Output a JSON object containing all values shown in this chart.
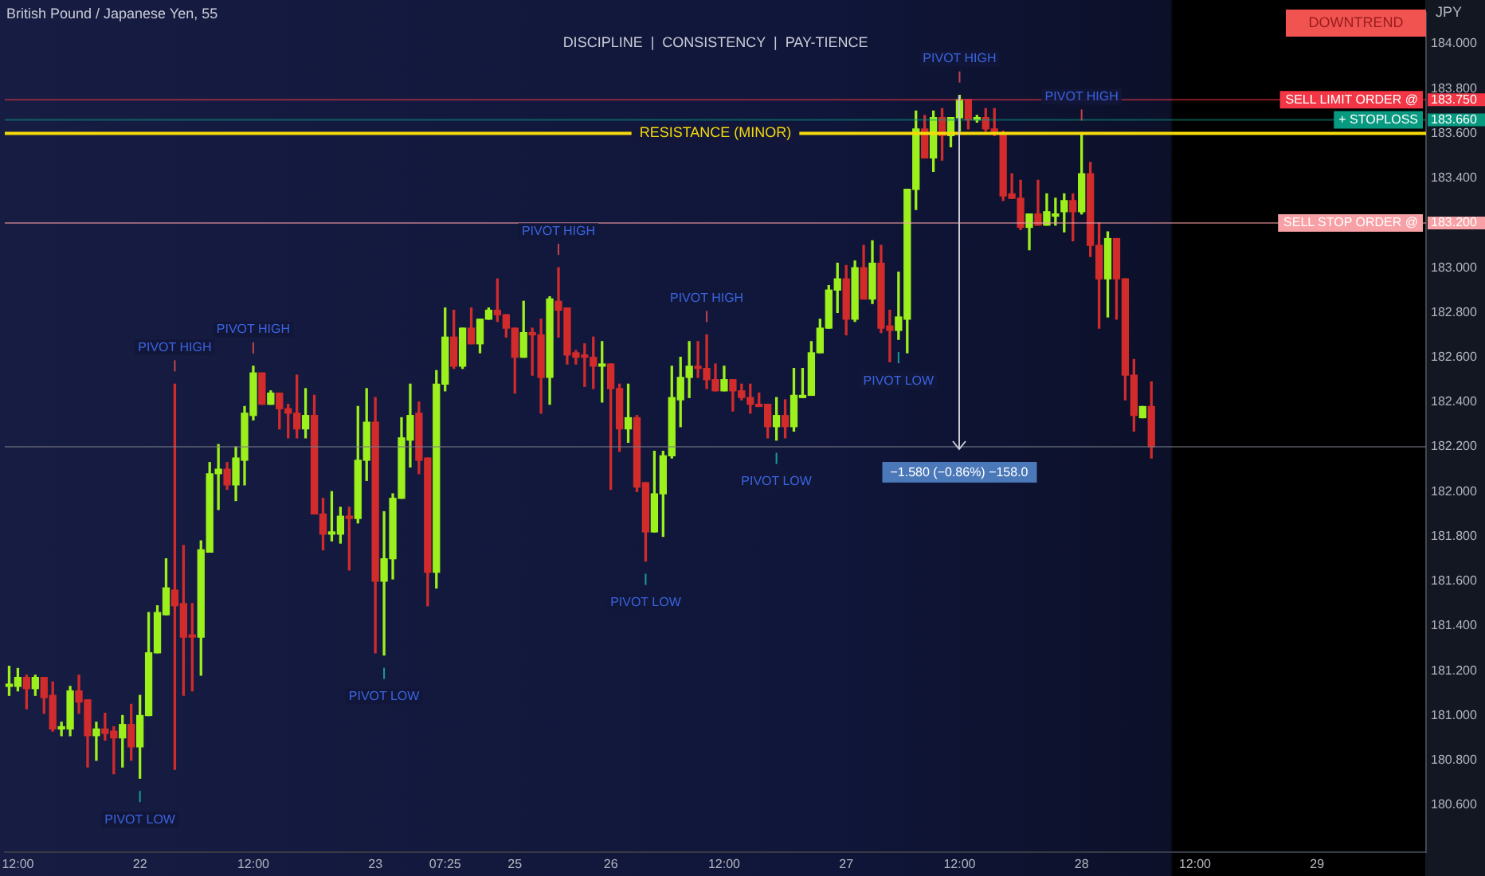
{
  "chart_data": {
    "type": "candlestick",
    "title": "British Pound / Japanese Yen, 55",
    "subtitle": "DISCIPLINE  |  CONSISTENCY  |  PAY-TIENCE",
    "ylabel": "JPY",
    "categories": [
      null,
      "12:00",
      null,
      null,
      null,
      null,
      null,
      null,
      null,
      null,
      null,
      null,
      null,
      null,
      null,
      "22",
      null,
      null,
      null,
      null,
      null,
      null,
      null,
      null,
      null,
      null,
      null,
      null,
      "12:00",
      null,
      null,
      null,
      null,
      null,
      null,
      null,
      null,
      null,
      null,
      null,
      null,
      null,
      "23",
      null,
      null,
      null,
      null,
      null,
      null,
      null,
      "07:25",
      null,
      null,
      null,
      null,
      null,
      null,
      null,
      "25",
      null,
      null,
      null,
      null,
      null,
      null,
      null,
      null,
      null,
      null,
      "26",
      null,
      null,
      null,
      null,
      null,
      null,
      null,
      null,
      null,
      null,
      null,
      null,
      "12:00",
      null,
      null,
      null,
      null,
      null,
      null,
      null,
      null,
      null,
      null,
      null,
      null,
      null,
      "27",
      null,
      null,
      null,
      null,
      null,
      null,
      null,
      null,
      null,
      null,
      null,
      null,
      "12:00",
      null,
      null,
      null,
      null,
      null,
      null,
      null,
      null,
      null,
      null,
      null,
      null,
      null,
      "28",
      null,
      null,
      null,
      null,
      null,
      null,
      null,
      null,
      null,
      null,
      null,
      null,
      "12:00",
      null,
      null,
      null,
      null,
      null,
      null,
      null,
      null,
      null,
      null,
      null,
      null,
      null,
      "29",
      null,
      null,
      null,
      null,
      null,
      null,
      null,
      null,
      null,
      null,
      null,
      null
    ],
    "ohlc": [
      [
        181.13,
        181.22,
        181.09,
        181.14
      ],
      [
        181.13,
        181.21,
        181.11,
        181.17
      ],
      [
        181.17,
        181.18,
        181.03,
        181.12
      ],
      [
        181.12,
        181.18,
        181.09,
        181.17
      ],
      [
        181.17,
        181.17,
        181.01,
        181.08
      ],
      [
        181.09,
        181.15,
        180.93,
        180.94
      ],
      [
        180.94,
        180.97,
        180.91,
        180.95
      ],
      [
        180.94,
        181.13,
        180.91,
        181.11
      ],
      [
        181.11,
        181.18,
        181.01,
        181.06
      ],
      [
        181.07,
        181.07,
        180.77,
        180.91
      ],
      [
        180.91,
        180.97,
        180.8,
        180.94
      ],
      [
        180.94,
        181.01,
        180.89,
        180.92
      ],
      [
        180.93,
        180.95,
        180.74,
        180.9
      ],
      [
        180.9,
        181.0,
        180.77,
        180.96
      ],
      [
        180.96,
        181.05,
        180.8,
        180.86
      ],
      [
        180.86,
        181.09,
        180.72,
        181.0
      ],
      [
        181.0,
        181.46,
        181.0,
        181.28
      ],
      [
        181.28,
        181.49,
        181.28,
        181.46
      ],
      [
        181.45,
        181.7,
        181.45,
        181.57
      ],
      [
        181.56,
        182.48,
        180.76,
        181.49
      ],
      [
        181.5,
        181.76,
        181.09,
        181.35
      ],
      [
        181.36,
        181.5,
        181.11,
        181.35
      ],
      [
        181.35,
        181.78,
        181.18,
        181.74
      ],
      [
        181.73,
        182.13,
        181.73,
        182.08
      ],
      [
        182.08,
        182.21,
        181.92,
        182.1
      ],
      [
        182.1,
        182.13,
        182.01,
        182.03
      ],
      [
        182.03,
        182.2,
        181.96,
        182.15
      ],
      [
        182.14,
        182.38,
        182.03,
        182.35
      ],
      [
        182.34,
        182.56,
        182.32,
        182.53
      ],
      [
        182.53,
        182.53,
        182.39,
        182.39
      ],
      [
        182.39,
        182.45,
        182.39,
        182.44
      ],
      [
        182.44,
        182.44,
        182.28,
        182.37
      ],
      [
        182.37,
        182.39,
        182.24,
        182.35
      ],
      [
        182.35,
        182.52,
        182.24,
        182.28
      ],
      [
        182.28,
        182.46,
        182.24,
        182.34
      ],
      [
        182.34,
        182.43,
        181.9,
        181.9
      ],
      [
        181.9,
        181.97,
        181.74,
        181.81
      ],
      [
        181.81,
        182.0,
        181.78,
        181.82
      ],
      [
        181.81,
        181.93,
        181.77,
        181.89
      ],
      [
        181.89,
        181.93,
        181.65,
        181.88
      ],
      [
        181.88,
        182.38,
        181.86,
        182.14
      ],
      [
        182.14,
        182.46,
        182.05,
        182.31
      ],
      [
        182.31,
        182.42,
        181.28,
        181.6
      ],
      [
        181.6,
        181.91,
        181.27,
        181.7
      ],
      [
        181.7,
        181.99,
        181.61,
        181.97
      ],
      [
        181.97,
        182.33,
        181.97,
        182.24
      ],
      [
        182.23,
        182.48,
        182.11,
        182.34
      ],
      [
        182.35,
        182.4,
        182.08,
        182.14
      ],
      [
        182.15,
        182.15,
        181.49,
        181.64
      ],
      [
        181.64,
        182.54,
        181.57,
        182.48
      ],
      [
        182.48,
        182.82,
        182.45,
        182.69
      ],
      [
        182.69,
        182.81,
        182.55,
        182.56
      ],
      [
        182.56,
        182.73,
        182.55,
        182.73
      ],
      [
        182.73,
        182.82,
        182.66,
        182.66
      ],
      [
        182.66,
        182.77,
        182.62,
        182.77
      ],
      [
        182.77,
        182.82,
        182.77,
        182.81
      ],
      [
        182.81,
        182.95,
        182.76,
        182.79
      ],
      [
        182.79,
        182.79,
        182.69,
        182.73
      ],
      [
        182.73,
        182.73,
        182.44,
        182.6
      ],
      [
        182.6,
        182.85,
        182.6,
        182.71
      ],
      [
        182.71,
        182.73,
        182.52,
        182.7
      ],
      [
        182.7,
        182.77,
        182.35,
        182.51
      ],
      [
        182.51,
        182.87,
        182.39,
        182.86
      ],
      [
        182.85,
        183.0,
        182.69,
        182.81
      ],
      [
        182.82,
        182.82,
        182.57,
        182.61
      ],
      [
        182.62,
        182.63,
        182.57,
        182.6
      ],
      [
        182.61,
        182.66,
        182.47,
        182.6
      ],
      [
        182.6,
        182.69,
        182.46,
        182.56
      ],
      [
        182.56,
        182.67,
        182.4,
        182.57
      ],
      [
        182.57,
        182.57,
        182.01,
        182.46
      ],
      [
        182.46,
        182.48,
        182.18,
        182.28
      ],
      [
        182.28,
        182.48,
        182.22,
        182.33
      ],
      [
        182.33,
        182.34,
        182.0,
        182.02
      ],
      [
        182.04,
        182.04,
        181.69,
        181.82
      ],
      [
        181.82,
        182.18,
        181.82,
        181.99
      ],
      [
        181.99,
        182.18,
        181.8,
        182.16
      ],
      [
        182.16,
        182.56,
        182.15,
        182.42
      ],
      [
        182.41,
        182.6,
        182.29,
        182.51
      ],
      [
        182.51,
        182.67,
        182.42,
        182.56
      ],
      [
        182.56,
        182.67,
        182.51,
        182.55
      ],
      [
        182.55,
        182.7,
        182.46,
        182.5
      ],
      [
        182.5,
        182.57,
        182.45,
        182.45
      ],
      [
        182.45,
        182.56,
        182.45,
        182.5
      ],
      [
        182.5,
        182.5,
        182.36,
        182.45
      ],
      [
        182.45,
        182.48,
        182.41,
        182.42
      ],
      [
        182.42,
        182.48,
        182.35,
        182.39
      ],
      [
        182.39,
        182.44,
        182.38,
        182.38
      ],
      [
        182.39,
        182.39,
        182.24,
        182.29
      ],
      [
        182.29,
        182.42,
        182.23,
        182.34
      ],
      [
        182.34,
        182.41,
        182.24,
        182.29
      ],
      [
        182.29,
        182.55,
        182.27,
        182.43
      ],
      [
        182.42,
        182.55,
        182.42,
        182.43
      ],
      [
        182.43,
        182.67,
        182.43,
        182.62
      ],
      [
        182.62,
        182.77,
        182.62,
        182.73
      ],
      [
        182.73,
        182.92,
        182.73,
        182.9
      ],
      [
        182.9,
        183.02,
        182.8,
        182.95
      ],
      [
        182.95,
        183.01,
        182.7,
        182.77
      ],
      [
        182.77,
        183.03,
        182.76,
        183.0
      ],
      [
        183.0,
        183.1,
        182.86,
        182.86
      ],
      [
        182.86,
        183.12,
        182.84,
        183.02
      ],
      [
        183.02,
        183.1,
        182.71,
        182.73
      ],
      [
        182.74,
        182.81,
        182.58,
        182.72
      ],
      [
        182.72,
        182.98,
        182.68,
        182.78
      ],
      [
        182.77,
        183.35,
        182.62,
        183.35
      ],
      [
        183.35,
        183.7,
        183.26,
        183.62
      ],
      [
        183.62,
        183.68,
        183.49,
        183.49
      ],
      [
        183.49,
        183.7,
        183.43,
        183.67
      ],
      [
        183.67,
        183.71,
        183.48,
        183.59
      ],
      [
        183.59,
        183.67,
        183.54,
        183.67
      ],
      [
        183.67,
        183.77,
        183.61,
        183.75
      ],
      [
        183.75,
        183.75,
        183.62,
        183.66
      ],
      [
        183.66,
        183.68,
        183.65,
        183.67
      ],
      [
        183.67,
        183.71,
        183.61,
        183.62
      ],
      [
        183.62,
        183.71,
        183.59,
        183.6
      ],
      [
        183.6,
        183.61,
        183.3,
        183.32
      ],
      [
        183.33,
        183.42,
        183.31,
        183.31
      ],
      [
        183.31,
        183.39,
        183.17,
        183.18
      ],
      [
        183.18,
        183.24,
        183.08,
        183.24
      ],
      [
        183.24,
        183.39,
        183.19,
        183.19
      ],
      [
        183.19,
        183.33,
        183.19,
        183.25
      ],
      [
        183.23,
        183.31,
        183.19,
        183.24
      ],
      [
        183.25,
        183.33,
        183.16,
        183.3
      ],
      [
        183.3,
        183.33,
        183.12,
        183.25
      ],
      [
        183.25,
        183.6,
        183.24,
        183.42
      ],
      [
        183.42,
        183.47,
        183.05,
        183.1
      ],
      [
        183.1,
        183.2,
        182.73,
        182.95
      ],
      [
        182.95,
        183.16,
        182.78,
        183.13
      ],
      [
        183.13,
        183.13,
        182.77,
        182.95
      ],
      [
        182.95,
        182.95,
        182.41,
        182.52
      ],
      [
        182.52,
        182.59,
        182.27,
        182.34
      ],
      [
        182.33,
        182.38,
        182.33,
        182.38
      ],
      [
        182.38,
        182.49,
        182.15,
        182.2
      ],
      null,
      null,
      null,
      null,
      null,
      null,
      null,
      null,
      null,
      null,
      null,
      null,
      null,
      null,
      null,
      null,
      null,
      null,
      null,
      null,
      null,
      null,
      null,
      null,
      null,
      null,
      null,
      null,
      null,
      null,
      null
    ],
    "colors": [
      "#9cf01c",
      "#9cf01c",
      "#d12b2b",
      "#9cf01c",
      "#d12b2b",
      "#d12b2b",
      "#9cf01c",
      "#9cf01c",
      "#d12b2b",
      "#d12b2b",
      "#9cf01c",
      "#d12b2b",
      "#d12b2b",
      "#9cf01c",
      "#d12b2b",
      "#9cf01c",
      "#9cf01c",
      "#9cf01c",
      "#9cf01c",
      "#d12b2b",
      "#d12b2b",
      "#d12b2b",
      "#9cf01c",
      "#9cf01c",
      "#9cf01c",
      "#d12b2b",
      "#9cf01c",
      "#9cf01c",
      "#9cf01c",
      "#d12b2b",
      "#9cf01c",
      "#d12b2b",
      "#d12b2b",
      "#d12b2b",
      "#9cf01c",
      "#d12b2b",
      "#d12b2b",
      "#9cf01c",
      "#9cf01c",
      "#d12b2b",
      "#9cf01c",
      "#9cf01c",
      "#d12b2b",
      "#9cf01c",
      "#9cf01c",
      "#9cf01c",
      "#9cf01c",
      "#d12b2b",
      "#d12b2b",
      "#9cf01c",
      "#9cf01c",
      "#d12b2b",
      "#9cf01c",
      "#d12b2b",
      "#9cf01c",
      "#9cf01c",
      "#d12b2b",
      "#d12b2b",
      "#d12b2b",
      "#9cf01c",
      "#d12b2b",
      "#d12b2b",
      "#9cf01c",
      "#d12b2b",
      "#d12b2b",
      "#d12b2b",
      "#d12b2b",
      "#d12b2b",
      "#9cf01c",
      "#d12b2b",
      "#d12b2b",
      "#9cf01c",
      "#d12b2b",
      "#d12b2b",
      "#9cf01c",
      "#9cf01c",
      "#9cf01c",
      "#9cf01c",
      "#9cf01c",
      "#d12b2b",
      "#d12b2b",
      "#d12b2b",
      "#9cf01c",
      "#d12b2b",
      "#d12b2b",
      "#d12b2b",
      "#d12b2b",
      "#d12b2b",
      "#9cf01c",
      "#d12b2b",
      "#9cf01c",
      "#9cf01c",
      "#9cf01c",
      "#9cf01c",
      "#9cf01c",
      "#9cf01c",
      "#d12b2b",
      "#9cf01c",
      "#d12b2b",
      "#9cf01c",
      "#d12b2b",
      "#d12b2b",
      "#9cf01c",
      "#9cf01c",
      "#9cf01c",
      "#d12b2b",
      "#9cf01c",
      "#d12b2b",
      "#9cf01c",
      "#9cf01c",
      "#d12b2b",
      "#9cf01c",
      "#d12b2b",
      "#d12b2b",
      "#d12b2b",
      "#d12b2b",
      "#d12b2b",
      "#9cf01c",
      "#d12b2b",
      "#9cf01c",
      "#9cf01c",
      "#9cf01c",
      "#d12b2b",
      "#9cf01c",
      "#d12b2b",
      "#d12b2b",
      "#9cf01c",
      "#d12b2b",
      "#d12b2b",
      "#d12b2b",
      "#9cf01c",
      "#d12b2b",
      null,
      null,
      null,
      null,
      null,
      null,
      null,
      null,
      null,
      null,
      null,
      null,
      null,
      null,
      null,
      null,
      null,
      null,
      null,
      null,
      null,
      null,
      null,
      null,
      null,
      null,
      null,
      null,
      null,
      null,
      null
    ],
    "ylim": [
      180.39,
      184.14
    ],
    "yticks": [
      {
        "value": 180.6,
        "label": "180.600"
      },
      {
        "value": 180.8,
        "label": "180.800"
      },
      {
        "value": 181,
        "label": "181.000"
      },
      {
        "value": 181.2,
        "label": "181.200"
      },
      {
        "value": 181.4,
        "label": "181.400"
      },
      {
        "value": 181.6,
        "label": "181.600"
      },
      {
        "value": 181.8,
        "label": "181.800"
      },
      {
        "value": 182,
        "label": "182.000"
      },
      {
        "value": 182.2,
        "label": "182.200"
      },
      {
        "value": 182.4,
        "label": "182.400"
      },
      {
        "value": 182.6,
        "label": "182.600"
      },
      {
        "value": 182.8,
        "label": "182.800"
      },
      {
        "value": 183,
        "label": "183.000"
      },
      {
        "value": 183.2,
        "label": "183.200"
      },
      {
        "value": 183.4,
        "label": "183.400"
      },
      {
        "value": 183.6,
        "label": "183.600"
      },
      {
        "value": 183.66,
        "label": "183.660"
      },
      {
        "value": 183.75,
        "label": "183.750"
      },
      {
        "value": 183.8,
        "label": "183.800"
      },
      {
        "value": 184,
        "label": "184.000"
      }
    ],
    "ref_lines": [
      {
        "axis": "y",
        "value": 183.75,
        "label": "SELL LIMIT ORDER @",
        "color": "#f23645"
      },
      {
        "axis": "y",
        "value": 183.66,
        "label": "+ STOPLOSS",
        "color": "#089981"
      },
      {
        "axis": "y",
        "value": 183.6,
        "label": "RESISTANCE (MINOR)",
        "color": "#f5d90a",
        "line_style": "solid"
      },
      {
        "axis": "y",
        "value": 183.2,
        "label": "SELL STOP ORDER @",
        "color": "#f7a1a6"
      },
      {
        "axis": "y",
        "value": 182.2,
        "color": "#787b86"
      }
    ],
    "annotations": [
      "DOWNTREND",
      {
        "text": "−1.580 (−0.86%) −158.0",
        "y": 182.19
      },
      {
        "text": "PIVOT LOW",
        "y": 180.72
      },
      {
        "text": "PIVOT HIGH",
        "y": 182.48
      },
      {
        "text": "PIVOT HIGH",
        "y": 182.56
      },
      {
        "text": "PIVOT LOW",
        "y": 181.27
      },
      {
        "text": "PIVOT HIGH",
        "y": 183.0
      },
      {
        "text": "PIVOT LOW",
        "y": 181.69
      },
      {
        "text": "PIVOT HIGH",
        "y": 182.7
      },
      {
        "text": "PIVOT LOW",
        "y": 182.23
      },
      {
        "text": "PIVOT LOW",
        "y": 182.68
      },
      {
        "text": "PIVOT HIGH",
        "y": 183.77
      },
      {
        "text": "PIVOT HIGH",
        "y": 183.6
      }
    ]
  }
}
